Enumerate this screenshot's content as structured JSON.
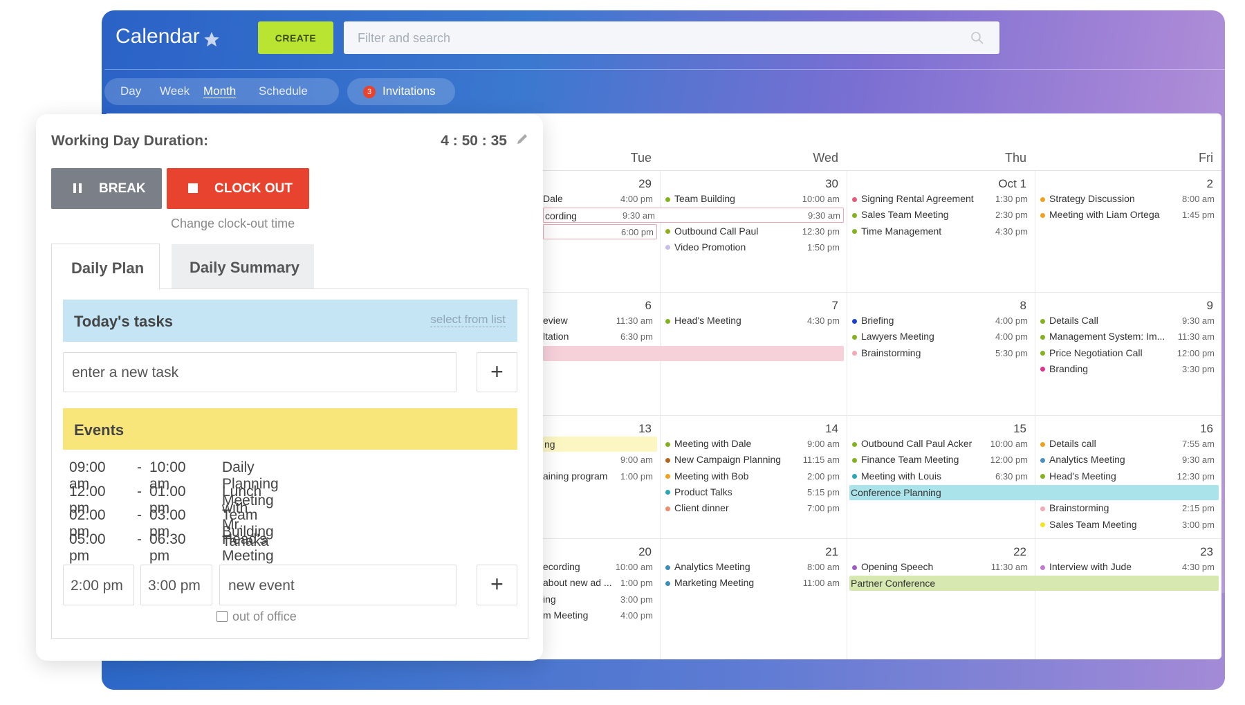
{
  "header": {
    "title": "Calendar",
    "create": "CREATE",
    "search_placeholder": "Filter and search",
    "views": [
      "Day",
      "Week",
      "Month",
      "Schedule"
    ],
    "active_view": "Month",
    "invitations_count": "3",
    "invitations": "Invitations"
  },
  "calendar": {
    "day_headers": [
      "Tue",
      "Wed",
      "Thu",
      "Fri"
    ],
    "weeks": [
      {
        "days": [
          {
            "date": "29",
            "events": [
              {
                "name": "Dale",
                "time": "4:00 pm"
              }
            ]
          },
          {
            "date": "30",
            "events": [
              {
                "name": "Team Building",
                "time": "10:00 am",
                "color": "#82b31f"
              },
              {
                "name": "Outbound Call Paul",
                "time": "12:30 pm",
                "color": "#8fae1b"
              },
              {
                "name": "Video Promotion",
                "time": "1:50 pm",
                "color": "#c9bdea"
              }
            ]
          },
          {
            "date": "Oct 1",
            "events": [
              {
                "name": "Signing Rental Agreement",
                "time": "1:30 pm",
                "color": "#e8587a"
              },
              {
                "name": "Sales Team Meeting",
                "time": "2:30 pm",
                "color": "#82b31f"
              },
              {
                "name": "Time Management",
                "time": "4:30 pm",
                "color": "#82b31f"
              }
            ]
          },
          {
            "date": "2",
            "events": [
              {
                "name": "Strategy Discussion",
                "time": "8:00 am",
                "color": "#f0a21f"
              },
              {
                "name": "Meeting with Liam Ortega",
                "time": "1:45 pm",
                "color": "#f0a21f"
              }
            ]
          }
        ],
        "bars": [
          {
            "name": "cording",
            "time": "9:30 am",
            "end_time": "9:30 am",
            "border": "#eaa7b7"
          },
          {
            "time": "6:00 pm",
            "border": "#eaa7b7"
          }
        ]
      },
      {
        "days": [
          {
            "date": "6",
            "events": [
              {
                "name": "eview",
                "time": "11:30 am"
              },
              {
                "name": "ltation",
                "time": "6:30 pm"
              }
            ]
          },
          {
            "date": "7",
            "events": [
              {
                "name": "Head's Meeting",
                "time": "4:30 pm",
                "color": "#82b31f"
              }
            ]
          },
          {
            "date": "8",
            "events": [
              {
                "name": "Briefing",
                "time": "4:00 pm",
                "color": "#1d3fcf"
              },
              {
                "name": "Lawyers Meeting",
                "time": "4:00 pm",
                "color": "#82b31f"
              },
              {
                "name": "Brainstorming",
                "time": "5:30 pm",
                "color": "#f2aab9"
              }
            ]
          },
          {
            "date": "9",
            "events": [
              {
                "name": "Details Call",
                "time": "9:30 am",
                "color": "#82b31f"
              },
              {
                "name": "Management System: Im...",
                "time": "11:30 am",
                "color": "#82b31f"
              },
              {
                "name": "Price Negotiation Call",
                "time": "12:00 pm",
                "color": "#82b31f"
              },
              {
                "name": "Branding",
                "time": "3:30 pm",
                "color": "#e0338e"
              }
            ]
          }
        ],
        "bars": [
          {
            "color": "#f7d1da"
          }
        ]
      },
      {
        "days": [
          {
            "date": "13",
            "events": [
              {
                "time": "9:00 am"
              },
              {
                "name": "aining program",
                "time": "1:00 pm"
              }
            ]
          },
          {
            "date": "14",
            "events": [
              {
                "name": "Meeting with Dale",
                "time": "9:00 am",
                "color": "#82b31f"
              },
              {
                "name": "New Campaign Planning",
                "time": "11:15 am",
                "color": "#b5651d"
              },
              {
                "name": "Meeting with Bob",
                "time": "2:00 pm",
                "color": "#f0a21f"
              },
              {
                "name": "Product Talks",
                "time": "5:15 pm",
                "color": "#29a7b5"
              },
              {
                "name": "Client dinner",
                "time": "7:00 pm",
                "color": "#ef8c6e"
              }
            ]
          },
          {
            "date": "15",
            "events": [
              {
                "name": "Outbound Call Paul Acker",
                "time": "10:00 am",
                "color": "#82b31f"
              },
              {
                "name": "Finance Team Meeting",
                "time": "12:00 pm",
                "color": "#82b31f"
              },
              {
                "name": "Meeting with Louis",
                "time": "6:30 pm",
                "color": "#29a7b5"
              }
            ]
          },
          {
            "date": "16",
            "events": [
              {
                "name": "Details call",
                "time": "7:55 am",
                "color": "#f0a21f"
              },
              {
                "name": "Analytics Meeting",
                "time": "9:30 am",
                "color": "#4a90c2"
              },
              {
                "name": "Head's Meeting",
                "time": "12:30 pm",
                "color": "#82b31f"
              },
              {
                "name": "Brainstorming",
                "time": "2:15 pm",
                "color": "#f2aab9"
              },
              {
                "name": "Sales Team Meeting",
                "time": "3:00 pm",
                "color": "#f5e31f"
              }
            ]
          }
        ],
        "bars": [
          {
            "name": "ng",
            "color": "#fbf6c2"
          },
          {
            "name": "Conference Planning",
            "color": "#abe3ea"
          }
        ]
      },
      {
        "days": [
          {
            "date": "20",
            "events": [
              {
                "name": "ecording",
                "time": "10:00 am"
              },
              {
                "name": "about new ad ...",
                "time": "1:00 pm"
              },
              {
                "name": "ing",
                "time": "3:00 pm"
              },
              {
                "name": "m Meeting",
                "time": "4:00 pm"
              }
            ]
          },
          {
            "date": "21",
            "events": [
              {
                "name": "Analytics Meeting",
                "time": "8:00 am",
                "color": "#3c8dbc"
              },
              {
                "name": "Marketing Meeting",
                "time": "11:00 am",
                "color": "#3c8dbc"
              }
            ]
          },
          {
            "date": "22",
            "events": [
              {
                "name": "Opening Speech",
                "time": "11:30 am",
                "color": "#9c5cc5"
              }
            ]
          },
          {
            "date": "23",
            "events": [
              {
                "name": "Interview with Jude",
                "time": "4:30 pm",
                "color": "#c07ad0"
              }
            ]
          }
        ],
        "bars": [
          {
            "name": "Partner Conference",
            "color": "#d7e8b0"
          }
        ]
      }
    ]
  },
  "panel": {
    "title": "Working Day Duration:",
    "duration": "4 : 50 : 35",
    "break": "BREAK",
    "clock_out": "CLOCK OUT",
    "change_link": "Change clock-out time",
    "tabs": [
      "Daily Plan",
      "Daily Summary"
    ],
    "tasks_title": "Today's tasks",
    "select_link": "select from list",
    "task_placeholder": "enter a new task",
    "events_title": "Events",
    "events": [
      {
        "start": "09:00 am",
        "end": "10:00 am",
        "name": "Daily Planning Meeting"
      },
      {
        "start": "12:00 pm",
        "end": "01:00 pm",
        "name": "Lunch with Mr. Tanaka"
      },
      {
        "start": "02:00 pm",
        "end": "03:00 pm",
        "name": "Team Building"
      },
      {
        "start": "05:00 pm",
        "end": "06:30 pm",
        "name": "Head's Meeting"
      }
    ],
    "new_event": {
      "start": "2:00 pm",
      "end": "3:00 pm",
      "name_placeholder": "new event"
    },
    "out_of_office": "out of office"
  }
}
